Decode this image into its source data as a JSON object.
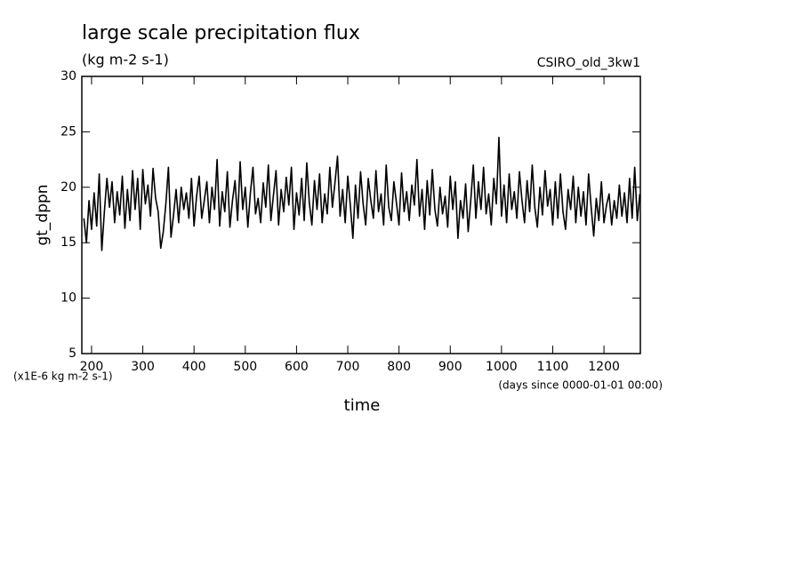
{
  "chart_data": {
    "type": "line",
    "title": "large scale precipitation flux",
    "subtitle": "(kg m-2 s-1)",
    "source": "CSIRO_old_3kw1",
    "ylabel": "gt_dppn",
    "xlabel": "time",
    "yunits": "(x1E-6 kg m-2 s-1)",
    "xunits": "(days since 0000-01-01 00:00)",
    "xlim": [
      181,
      1271
    ],
    "ylim": [
      5,
      30
    ],
    "xticks": [
      200,
      300,
      400,
      500,
      600,
      700,
      800,
      900,
      1000,
      1100,
      1200
    ],
    "yticks": [
      5,
      10,
      15,
      20,
      25,
      30
    ],
    "x": [
      185,
      190,
      195,
      200,
      205,
      210,
      215,
      220,
      225,
      230,
      235,
      240,
      245,
      250,
      255,
      260,
      265,
      270,
      275,
      280,
      285,
      290,
      295,
      300,
      305,
      310,
      315,
      320,
      325,
      330,
      335,
      340,
      345,
      350,
      355,
      360,
      365,
      370,
      375,
      380,
      385,
      390,
      395,
      400,
      405,
      410,
      415,
      420,
      425,
      430,
      435,
      440,
      445,
      450,
      455,
      460,
      465,
      470,
      475,
      480,
      485,
      490,
      495,
      500,
      505,
      510,
      515,
      520,
      525,
      530,
      535,
      540,
      545,
      550,
      555,
      560,
      565,
      570,
      575,
      580,
      585,
      590,
      595,
      600,
      605,
      610,
      615,
      620,
      625,
      630,
      635,
      640,
      645,
      650,
      655,
      660,
      665,
      670,
      675,
      680,
      685,
      690,
      695,
      700,
      705,
      710,
      715,
      720,
      725,
      730,
      735,
      740,
      745,
      750,
      755,
      760,
      765,
      770,
      775,
      780,
      785,
      790,
      795,
      800,
      805,
      810,
      815,
      820,
      825,
      830,
      835,
      840,
      845,
      850,
      855,
      860,
      865,
      870,
      875,
      880,
      885,
      890,
      895,
      900,
      905,
      910,
      915,
      920,
      925,
      930,
      935,
      940,
      945,
      950,
      955,
      960,
      965,
      970,
      975,
      980,
      985,
      990,
      995,
      1000,
      1005,
      1010,
      1015,
      1020,
      1025,
      1030,
      1035,
      1040,
      1045,
      1050,
      1055,
      1060,
      1065,
      1070,
      1075,
      1080,
      1085,
      1090,
      1095,
      1100,
      1105,
      1110,
      1115,
      1120,
      1125,
      1130,
      1135,
      1140,
      1145,
      1150,
      1155,
      1160,
      1165,
      1170,
      1175,
      1180,
      1185,
      1190,
      1195,
      1200,
      1205,
      1210,
      1215,
      1220,
      1225,
      1230,
      1235,
      1240,
      1245,
      1250,
      1255,
      1260,
      1265,
      1270
    ],
    "series": [
      {
        "name": "gt_dppn",
        "color": "#000000",
        "values": [
          17.2,
          15,
          18.8,
          16.2,
          19.5,
          16.5,
          21.2,
          14.3,
          17.8,
          20.8,
          18.2,
          20.5,
          16.8,
          19.6,
          17.5,
          21,
          16.3,
          19.8,
          17,
          21.5,
          18,
          20.8,
          16.2,
          21.6,
          18.5,
          20.2,
          17.4,
          21.7,
          19,
          17.8,
          14.5,
          16,
          18.5,
          21.8,
          15.5,
          17.5,
          19.8,
          16.8,
          20,
          18,
          19.5,
          17.2,
          20.8,
          16.5,
          19.2,
          21,
          17.2,
          18.8,
          20.5,
          16.8,
          20,
          18,
          22.5,
          16.5,
          19.6,
          17.8,
          21.4,
          16.4,
          18.8,
          20.6,
          17,
          22.3,
          18,
          20,
          16.4,
          19.5,
          21.8,
          17.6,
          19,
          16.8,
          20.4,
          18.2,
          22,
          17,
          19.3,
          21.5,
          16.6,
          19.8,
          17.8,
          20.9,
          18.4,
          21.8,
          16.2,
          19.5,
          17.5,
          20.8,
          17,
          22.2,
          18.6,
          16.6,
          20.6,
          18,
          21.2,
          16.8,
          19.4,
          17.6,
          21.8,
          18.2,
          20.4,
          22.8,
          17.4,
          19.8,
          16.8,
          21,
          18.4,
          15.4,
          20.2,
          17.2,
          21.4,
          18.5,
          16.6,
          20.8,
          18.8,
          17.2,
          21.5,
          17.8,
          19.4,
          16.6,
          22,
          18.2,
          17,
          20.5,
          18.6,
          16.6,
          21.3,
          17.8,
          19.6,
          17,
          20.2,
          18.4,
          22.5,
          17.4,
          19.8,
          16.2,
          20.6,
          17.5,
          21.6,
          18,
          16.5,
          20,
          17.6,
          19.2,
          16.4,
          21,
          18,
          20.5,
          15.4,
          18.8,
          17.2,
          20.3,
          16,
          18.8,
          22,
          17.2,
          20.5,
          18,
          21.8,
          17.6,
          19.4,
          16.6,
          20.8,
          18.5,
          24.5,
          17.4,
          20.2,
          16.8,
          21.2,
          18,
          19.6,
          17.2,
          21.4,
          18.8,
          16.8,
          20.6,
          17.8,
          22,
          18.2,
          16.4,
          20,
          17.5,
          21.5,
          18.3,
          19.8,
          16.6,
          20.5,
          17.2,
          21.2,
          17.8,
          16.2,
          19.8,
          18,
          21,
          16.8,
          20,
          17.4,
          19.6,
          16.6,
          21.2,
          18.2,
          15.6,
          19,
          17,
          20.5,
          16.8,
          18.4,
          19.4,
          16.6,
          18.8,
          17.2,
          20.2,
          17.4,
          19.5,
          16.8,
          20.8,
          17.2,
          21.8,
          17,
          19.4
        ]
      }
    ]
  }
}
